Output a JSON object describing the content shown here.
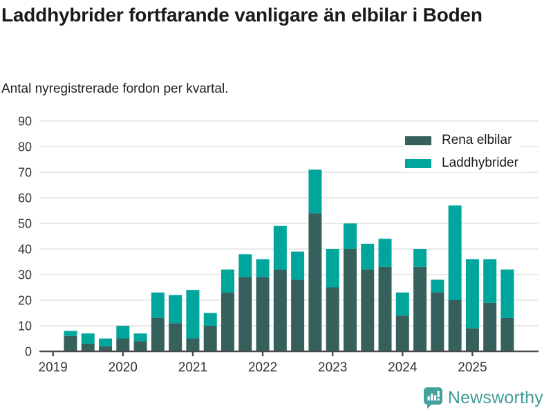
{
  "header": {
    "title": "Laddhybrider fortfarande vanligare än elbilar i Boden",
    "subtitle": "Antal nyregistrerade fordon per kvartal."
  },
  "legend": {
    "items": [
      {
        "label": "Rena elbilar",
        "color": "#36605b"
      },
      {
        "label": "Laddhybrider",
        "color": "#00a69c"
      }
    ]
  },
  "footer": {
    "brand": "Newsworthy",
    "brand_color": "#3f9c96",
    "logo_icon": "bar-chart-speech-bubble-icon"
  },
  "colors": {
    "series_dark": "#36605b",
    "series_teal": "#00a69c",
    "gridline": "#e2e2e2",
    "axis": "#4b4b4b",
    "tick_text": "#333333",
    "background": "#ffffff"
  },
  "chart_data": {
    "type": "bar",
    "stacked": true,
    "title": "Laddhybrider fortfarande vanligare än elbilar i Boden",
    "subtitle": "Antal nyregistrerade fordon per kvartal.",
    "xlabel": "",
    "ylabel": "",
    "categories": [
      "2019 Q2",
      "2019 Q3",
      "2019 Q4",
      "2020 Q1",
      "2020 Q2",
      "2020 Q3",
      "2020 Q4",
      "2021 Q1",
      "2021 Q2",
      "2021 Q3",
      "2021 Q4",
      "2022 Q1",
      "2022 Q2",
      "2022 Q3",
      "2022 Q4",
      "2023 Q1",
      "2023 Q2",
      "2023 Q3",
      "2023 Q4",
      "2024 Q1",
      "2024 Q2",
      "2024 Q3",
      "2024 Q4",
      "2025 Q1",
      "2025 Q2",
      "2025 Q3"
    ],
    "series": [
      {
        "name": "Rena elbilar",
        "color": "#36605b",
        "values": [
          6,
          3,
          2,
          5,
          4,
          13,
          11,
          5,
          10,
          23,
          29,
          29,
          32,
          28,
          54,
          25,
          40,
          32,
          33,
          14,
          33,
          23,
          20,
          9,
          19,
          13
        ]
      },
      {
        "name": "Laddhybrider",
        "color": "#00a69c",
        "values": [
          2,
          4,
          3,
          5,
          3,
          10,
          11,
          19,
          5,
          9,
          9,
          7,
          17,
          11,
          17,
          15,
          10,
          10,
          11,
          9,
          7,
          5,
          37,
          27,
          17,
          19
        ]
      }
    ],
    "totals": [
      8,
      7,
      5,
      10,
      7,
      23,
      22,
      24,
      15,
      32,
      38,
      36,
      49,
      39,
      71,
      40,
      50,
      42,
      44,
      23,
      40,
      28,
      57,
      36,
      36,
      32
    ],
    "x_ticks": [
      "2019",
      "2020",
      "2021",
      "2022",
      "2023",
      "2024",
      "2025"
    ],
    "y_ticks": [
      0,
      10,
      20,
      30,
      40,
      50,
      60,
      70,
      80,
      90
    ],
    "ylim": [
      0,
      93
    ],
    "grid": true,
    "legend_position": "top-right"
  }
}
